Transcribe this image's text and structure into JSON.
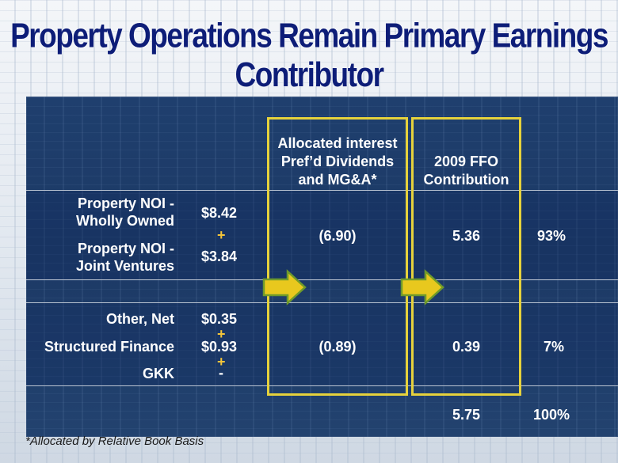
{
  "title": "Property Operations Remain Primary Earnings Contributor",
  "headers": {
    "col_allocated": [
      "Allocated interest",
      "Pref’d Dividends",
      "and MG&A*"
    ],
    "col_ffo": [
      "2009 FFO",
      "Contribution"
    ]
  },
  "group1": {
    "label_wholly_1": "Property NOI -",
    "label_wholly_2": "Wholly Owned",
    "value_wholly": "$8.42",
    "plus": "+",
    "label_jv_1": "Property NOI -",
    "label_jv_2": "Joint Ventures",
    "value_jv": "$3.84",
    "allocated": "(6.90)",
    "ffo": "5.36",
    "percent": "93%"
  },
  "group2": {
    "label_other": "Other, Net",
    "value_other": "$0.35",
    "plus1": "+",
    "label_structured": "Structured Finance",
    "value_structured": "$0.93",
    "plus2": "+",
    "label_gkk": "GKK",
    "value_gkk": "-",
    "allocated": "(0.89)",
    "ffo": "0.39",
    "percent": "7%"
  },
  "totals": {
    "ffo": "5.75",
    "percent": "100%"
  },
  "footnote": "*Allocated by Relative Book Basis",
  "colors": {
    "title": "#0d1d78",
    "panel": "#1f3f6e",
    "box_border": "#e6d23c",
    "arrow_fill": "#e8c81e",
    "arrow_stroke": "#6f9a2a",
    "plus": "#f3c43a"
  },
  "icons": [
    "right-arrow-icon",
    "right-arrow-icon"
  ]
}
